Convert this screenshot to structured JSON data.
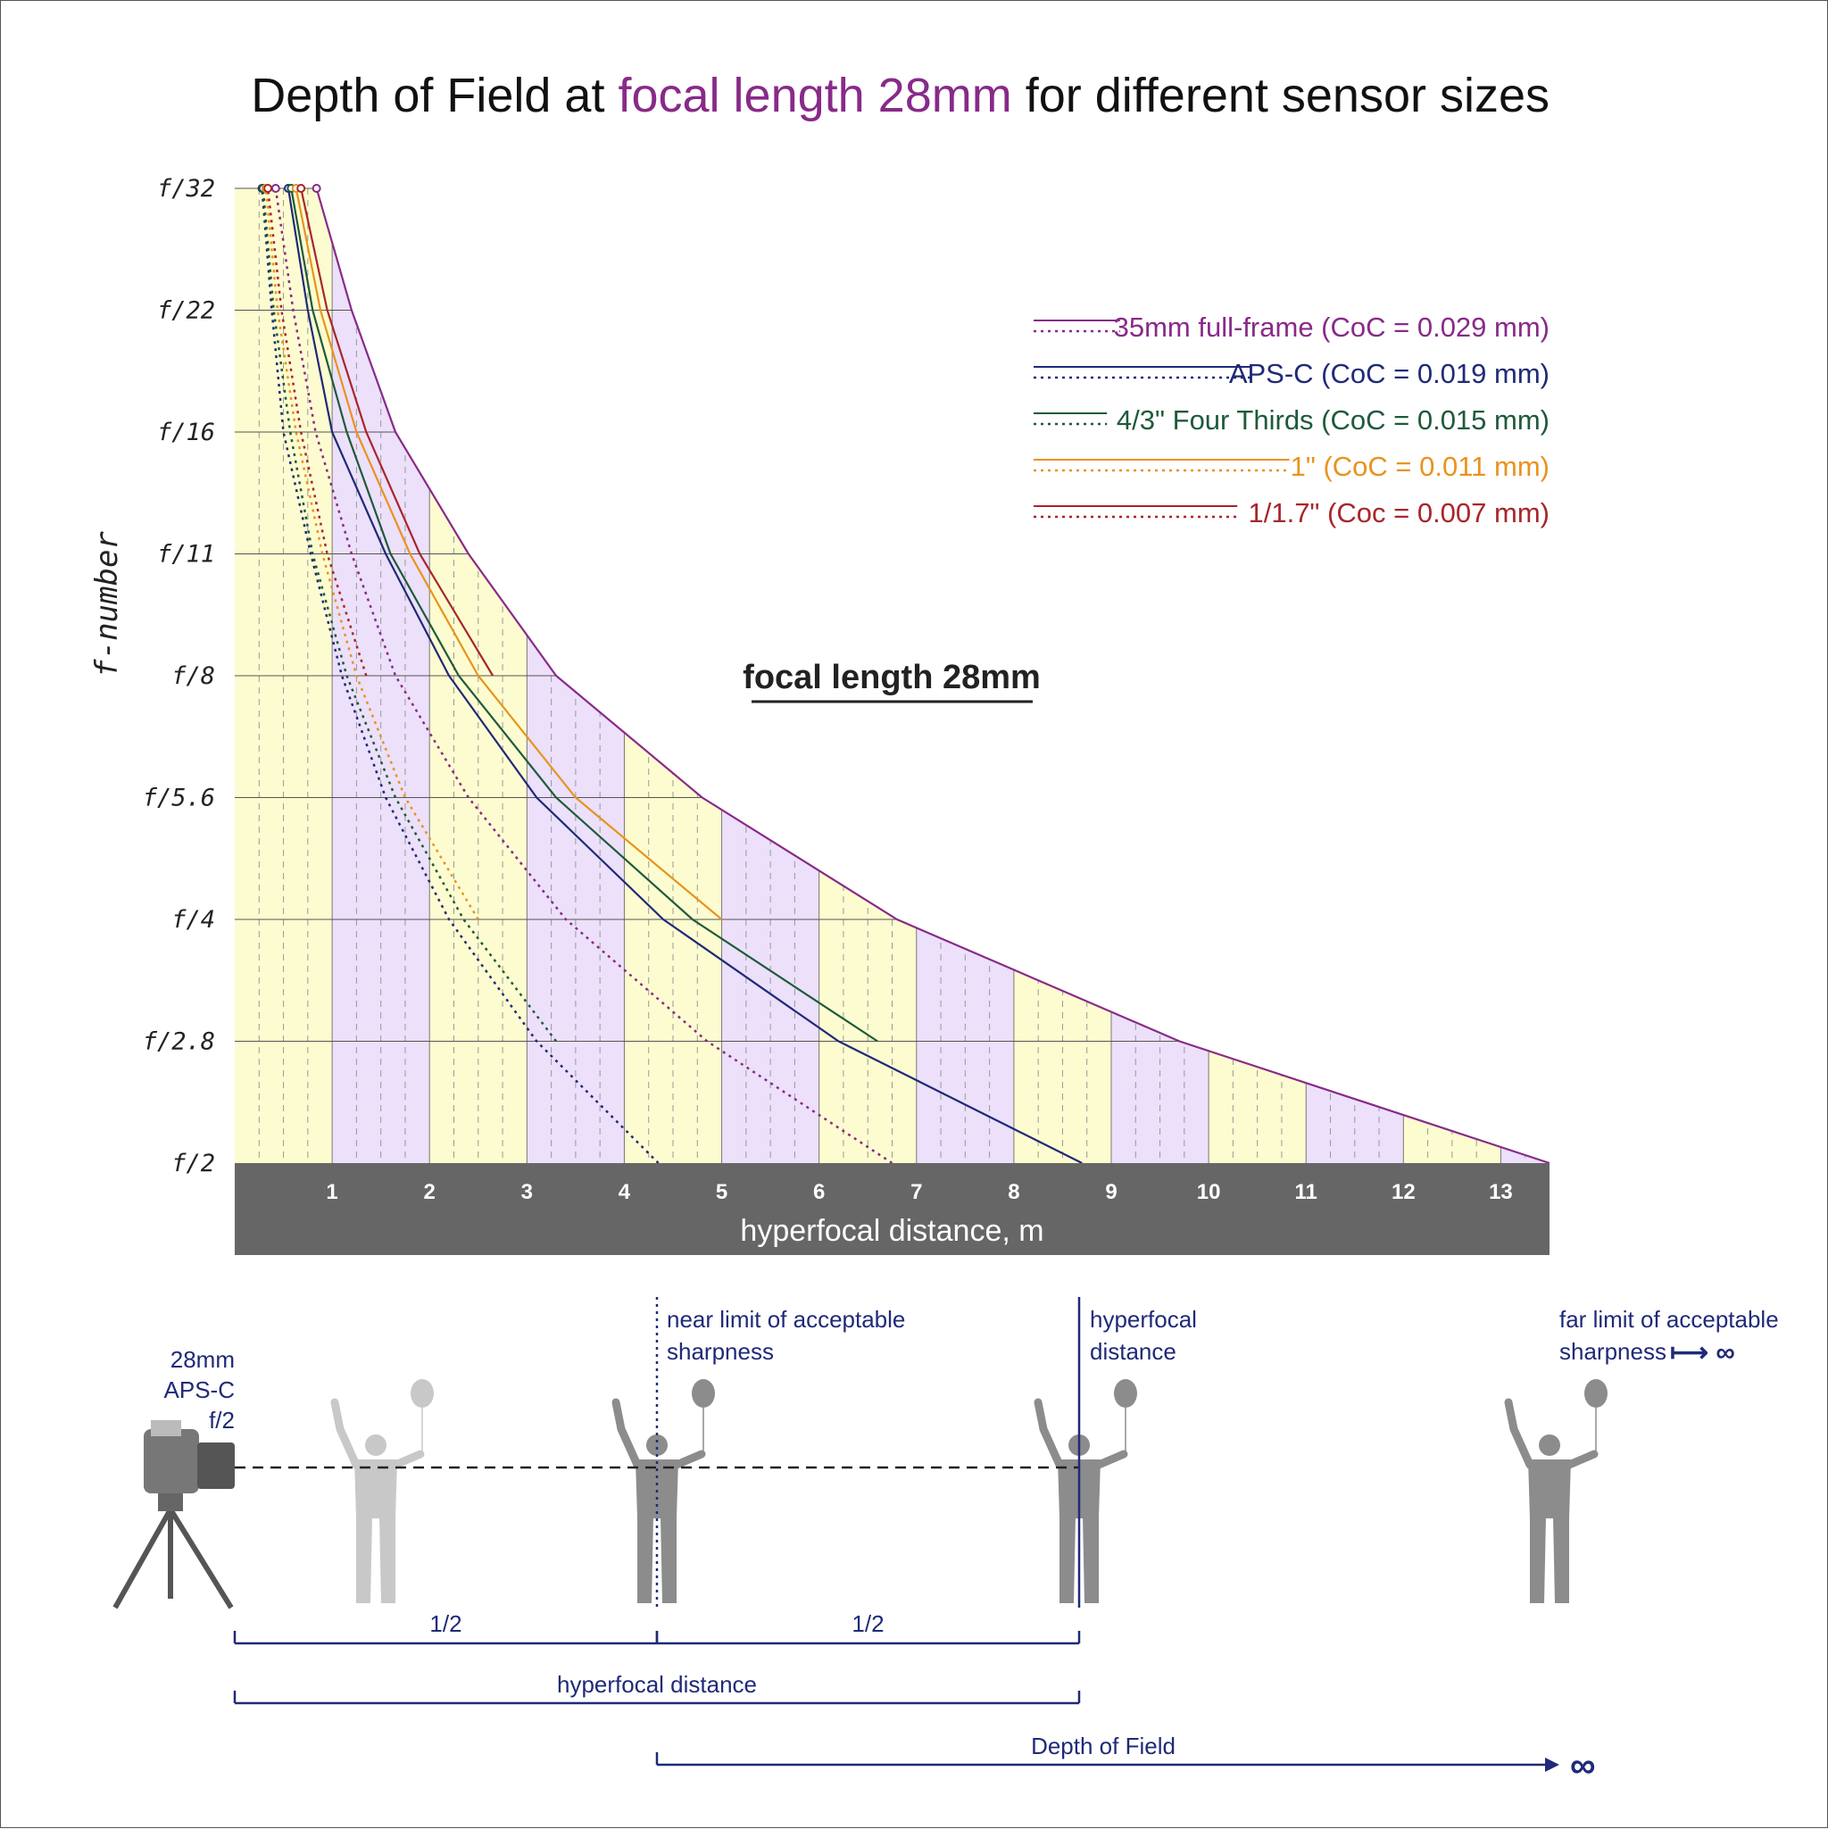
{
  "chart_data": {
    "type": "line",
    "title_parts": [
      {
        "text": "Depth of Field at ",
        "color": "#111111"
      },
      {
        "text": "focal length 28mm",
        "color": "#882a88"
      },
      {
        "text": " for different sensor sizes",
        "color": "#111111"
      }
    ],
    "ylabel": "f-number",
    "xlabel": "hyperfocal distance, m",
    "center_label": "focal length 28mm",
    "y_ticks": [
      "f/2",
      "f/2.8",
      "f/4",
      "f/5.6",
      "f/8",
      "f/11",
      "f/16",
      "f/22",
      "f/32"
    ],
    "x_ticks": [
      "1",
      "2",
      "3",
      "4",
      "5",
      "6",
      "7",
      "8",
      "9",
      "10",
      "11",
      "12",
      "13"
    ],
    "xlim": [
      0,
      13.5
    ],
    "y_scale": "f-stop steps",
    "grid": true,
    "legend_position": "top-right",
    "series": [
      {
        "name": "35mm full-frame (CoC = 0.029 mm)",
        "color": "#882a88",
        "hyperfocal": [
          13.5,
          9.7,
          6.8,
          4.8,
          3.3,
          2.4,
          1.65,
          1.2,
          0.84
        ],
        "near": [
          6.75,
          4.85,
          3.4,
          2.4,
          1.65,
          1.2,
          0.83,
          0.6,
          0.42
        ],
        "near_from": 0
      },
      {
        "name": "APS-C (CoC = 0.019 mm)",
        "color": "#1f2a78",
        "hyperfocal": [
          8.7,
          6.2,
          4.4,
          3.1,
          2.2,
          1.55,
          1.0,
          0.75,
          0.55
        ],
        "near": [
          4.35,
          3.1,
          2.2,
          1.55,
          1.1,
          0.78,
          0.5,
          0.38,
          0.28
        ],
        "near_from": 0
      },
      {
        "name": "4/3\" Four Thirds (CoC = 0.015 mm)",
        "color": "#1e5a3a",
        "hyperfocal": [
          6.6,
          4.7,
          3.3,
          2.3,
          1.6,
          1.15,
          0.8,
          0.58
        ],
        "near": [
          3.3,
          2.35,
          1.65,
          1.15,
          0.8,
          0.57,
          0.4,
          0.29
        ],
        "near_from": 1
      },
      {
        "name": "1\" (CoC = 0.011 mm)",
        "color": "#e8931e",
        "hyperfocal": [
          5.0,
          3.5,
          2.5,
          1.8,
          1.25,
          0.88,
          0.63
        ],
        "near": [
          2.5,
          1.75,
          1.25,
          0.9,
          0.63,
          0.44,
          0.32
        ],
        "near_from": 2
      },
      {
        "name": "1/1.7\" (Coc = 0.007 mm)",
        "color": "#a8262a",
        "hyperfocal": [
          2.65,
          1.9,
          1.35,
          0.95,
          0.68
        ],
        "near": [
          1.35,
          0.95,
          0.68,
          0.48,
          0.34
        ],
        "near_from": 4
      }
    ]
  },
  "diagram": {
    "camera_label": [
      "28mm",
      "APS-C",
      "f/2"
    ],
    "near_limit_label": [
      "near limit of acceptable",
      "sharpness"
    ],
    "hyperfocal_label": [
      "hyperfocal",
      "distance"
    ],
    "far_limit_label": [
      "far limit of acceptable",
      "sharpness"
    ],
    "far_limit_arrow": "⟼ ∞",
    "half_left": "1/2",
    "half_right": "1/2",
    "hyperfocal_bracket": "hyperfocal distance",
    "dof_bracket": "Depth of Field",
    "infinity": "∞",
    "accent_color": "#1f2a78",
    "figure_color": "#8c8c8c",
    "faded_color": "#c8c8c8"
  }
}
